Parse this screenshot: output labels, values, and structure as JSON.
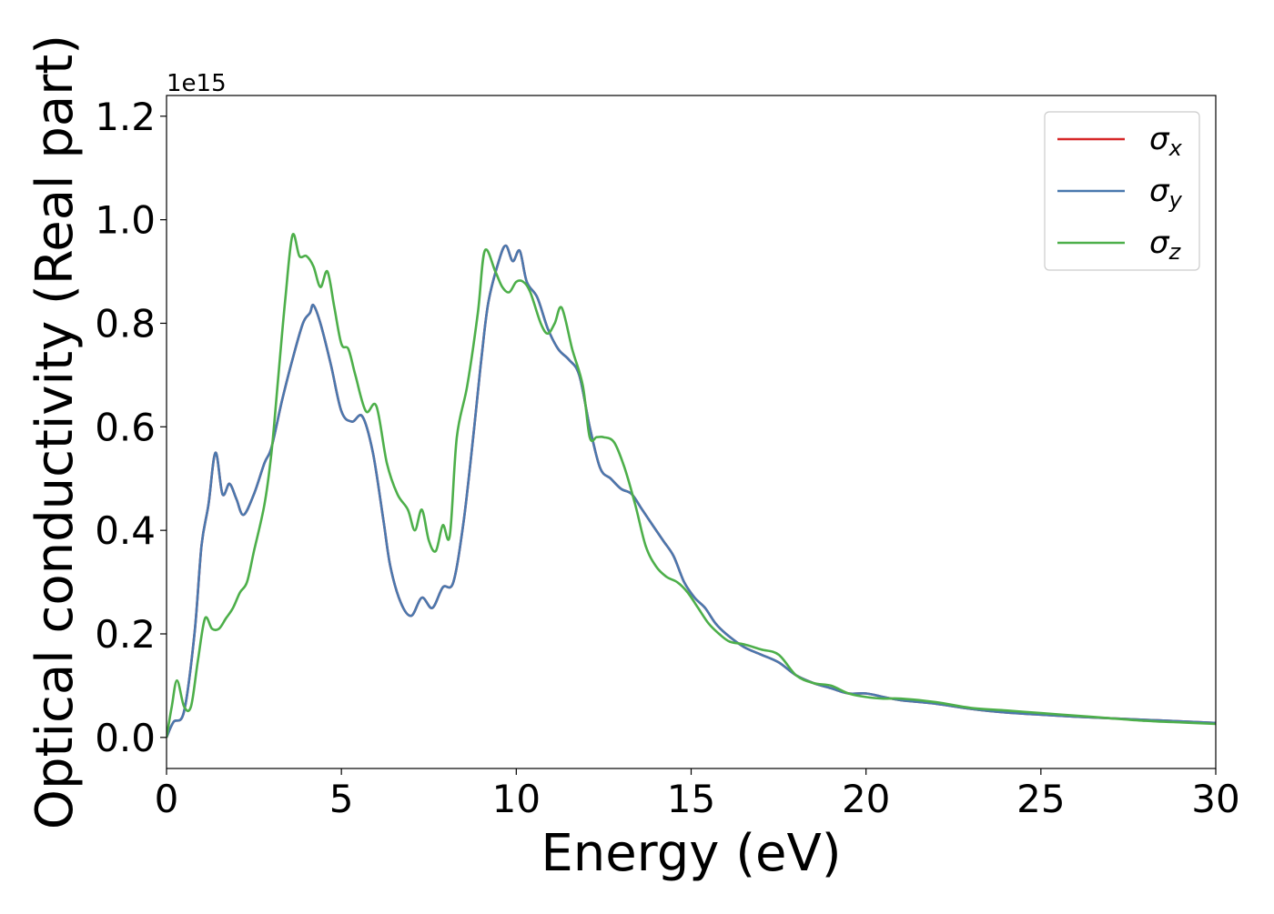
{
  "chart_data": {
    "type": "line",
    "title": "",
    "xlabel": "Energy (eV)",
    "ylabel": "Optical conductivity (Real part)",
    "y_offset_label": "1e15",
    "xlim": [
      0,
      30
    ],
    "ylim": [
      -0.06,
      1.24
    ],
    "xticks": [
      0,
      5,
      10,
      15,
      20,
      25,
      30
    ],
    "yticks": [
      0.0,
      0.2,
      0.4,
      0.6,
      0.8,
      1.0,
      1.2
    ],
    "xtick_labels": [
      "0",
      "5",
      "10",
      "15",
      "20",
      "25",
      "30"
    ],
    "ytick_labels": [
      "0.0",
      "0.2",
      "0.4",
      "0.6",
      "0.8",
      "1.0",
      "1.2"
    ],
    "grid": false,
    "legend": "top-right",
    "series": [
      {
        "name": "σx",
        "legend_base": "σ",
        "legend_sub": "x",
        "color": "#d62728",
        "points": [
          [
            0,
            0
          ],
          [
            0.2,
            0.03
          ],
          [
            0.5,
            0.05
          ],
          [
            0.8,
            0.2
          ],
          [
            1.0,
            0.37
          ],
          [
            1.2,
            0.45
          ],
          [
            1.4,
            0.55
          ],
          [
            1.6,
            0.47
          ],
          [
            1.8,
            0.49
          ],
          [
            2.0,
            0.46
          ],
          [
            2.2,
            0.43
          ],
          [
            2.5,
            0.47
          ],
          [
            2.8,
            0.53
          ],
          [
            3.0,
            0.56
          ],
          [
            3.3,
            0.65
          ],
          [
            3.6,
            0.73
          ],
          [
            3.9,
            0.8
          ],
          [
            4.1,
            0.82
          ],
          [
            4.2,
            0.835
          ],
          [
            4.4,
            0.8
          ],
          [
            4.7,
            0.72
          ],
          [
            5.0,
            0.63
          ],
          [
            5.3,
            0.61
          ],
          [
            5.6,
            0.62
          ],
          [
            5.9,
            0.55
          ],
          [
            6.2,
            0.42
          ],
          [
            6.4,
            0.33
          ],
          [
            6.7,
            0.26
          ],
          [
            7.0,
            0.235
          ],
          [
            7.3,
            0.27
          ],
          [
            7.6,
            0.25
          ],
          [
            7.9,
            0.29
          ],
          [
            8.2,
            0.3
          ],
          [
            8.5,
            0.42
          ],
          [
            8.8,
            0.6
          ],
          [
            9.0,
            0.73
          ],
          [
            9.2,
            0.84
          ],
          [
            9.5,
            0.92
          ],
          [
            9.7,
            0.95
          ],
          [
            9.9,
            0.92
          ],
          [
            10.1,
            0.94
          ],
          [
            10.3,
            0.88
          ],
          [
            10.6,
            0.85
          ],
          [
            10.9,
            0.79
          ],
          [
            11.2,
            0.75
          ],
          [
            11.5,
            0.73
          ],
          [
            11.8,
            0.7
          ],
          [
            12.1,
            0.6
          ],
          [
            12.4,
            0.52
          ],
          [
            12.7,
            0.5
          ],
          [
            13.0,
            0.48
          ],
          [
            13.3,
            0.47
          ],
          [
            13.6,
            0.44
          ],
          [
            13.9,
            0.41
          ],
          [
            14.2,
            0.38
          ],
          [
            14.5,
            0.35
          ],
          [
            14.8,
            0.3
          ],
          [
            15.1,
            0.27
          ],
          [
            15.4,
            0.25
          ],
          [
            15.7,
            0.22
          ],
          [
            16.0,
            0.2
          ],
          [
            16.5,
            0.175
          ],
          [
            17.0,
            0.16
          ],
          [
            17.5,
            0.145
          ],
          [
            18.0,
            0.12
          ],
          [
            18.5,
            0.105
          ],
          [
            19.0,
            0.095
          ],
          [
            19.5,
            0.085
          ],
          [
            20.0,
            0.085
          ],
          [
            20.5,
            0.078
          ],
          [
            21.0,
            0.072
          ],
          [
            22.0,
            0.065
          ],
          [
            23.0,
            0.055
          ],
          [
            24.0,
            0.048
          ],
          [
            25.0,
            0.044
          ],
          [
            26.0,
            0.04
          ],
          [
            27.0,
            0.037
          ],
          [
            28.0,
            0.034
          ],
          [
            29.0,
            0.031
          ],
          [
            30.0,
            0.028
          ]
        ]
      },
      {
        "name": "σy",
        "legend_base": "σ",
        "legend_sub": "y",
        "color": "#4a78ae",
        "points": [
          [
            0,
            0
          ],
          [
            0.2,
            0.03
          ],
          [
            0.5,
            0.05
          ],
          [
            0.8,
            0.2
          ],
          [
            1.0,
            0.37
          ],
          [
            1.2,
            0.45
          ],
          [
            1.4,
            0.55
          ],
          [
            1.6,
            0.47
          ],
          [
            1.8,
            0.49
          ],
          [
            2.0,
            0.46
          ],
          [
            2.2,
            0.43
          ],
          [
            2.5,
            0.47
          ],
          [
            2.8,
            0.53
          ],
          [
            3.0,
            0.56
          ],
          [
            3.3,
            0.65
          ],
          [
            3.6,
            0.73
          ],
          [
            3.9,
            0.8
          ],
          [
            4.1,
            0.82
          ],
          [
            4.2,
            0.835
          ],
          [
            4.4,
            0.8
          ],
          [
            4.7,
            0.72
          ],
          [
            5.0,
            0.63
          ],
          [
            5.3,
            0.61
          ],
          [
            5.6,
            0.62
          ],
          [
            5.9,
            0.55
          ],
          [
            6.2,
            0.42
          ],
          [
            6.4,
            0.33
          ],
          [
            6.7,
            0.26
          ],
          [
            7.0,
            0.235
          ],
          [
            7.3,
            0.27
          ],
          [
            7.6,
            0.25
          ],
          [
            7.9,
            0.29
          ],
          [
            8.2,
            0.3
          ],
          [
            8.5,
            0.42
          ],
          [
            8.8,
            0.6
          ],
          [
            9.0,
            0.73
          ],
          [
            9.2,
            0.84
          ],
          [
            9.5,
            0.92
          ],
          [
            9.7,
            0.95
          ],
          [
            9.9,
            0.92
          ],
          [
            10.1,
            0.94
          ],
          [
            10.3,
            0.88
          ],
          [
            10.6,
            0.85
          ],
          [
            10.9,
            0.79
          ],
          [
            11.2,
            0.75
          ],
          [
            11.5,
            0.73
          ],
          [
            11.8,
            0.7
          ],
          [
            12.1,
            0.6
          ],
          [
            12.4,
            0.52
          ],
          [
            12.7,
            0.5
          ],
          [
            13.0,
            0.48
          ],
          [
            13.3,
            0.47
          ],
          [
            13.6,
            0.44
          ],
          [
            13.9,
            0.41
          ],
          [
            14.2,
            0.38
          ],
          [
            14.5,
            0.35
          ],
          [
            14.8,
            0.3
          ],
          [
            15.1,
            0.27
          ],
          [
            15.4,
            0.25
          ],
          [
            15.7,
            0.22
          ],
          [
            16.0,
            0.2
          ],
          [
            16.5,
            0.175
          ],
          [
            17.0,
            0.16
          ],
          [
            17.5,
            0.145
          ],
          [
            18.0,
            0.12
          ],
          [
            18.5,
            0.105
          ],
          [
            19.0,
            0.095
          ],
          [
            19.5,
            0.085
          ],
          [
            20.0,
            0.085
          ],
          [
            20.5,
            0.078
          ],
          [
            21.0,
            0.072
          ],
          [
            22.0,
            0.065
          ],
          [
            23.0,
            0.055
          ],
          [
            24.0,
            0.048
          ],
          [
            25.0,
            0.044
          ],
          [
            26.0,
            0.04
          ],
          [
            27.0,
            0.037
          ],
          [
            28.0,
            0.034
          ],
          [
            29.0,
            0.031
          ],
          [
            30.0,
            0.028
          ]
        ]
      },
      {
        "name": "σz",
        "legend_base": "σ",
        "legend_sub": "z",
        "color": "#4daf4a",
        "points": [
          [
            0,
            0
          ],
          [
            0.15,
            0.06
          ],
          [
            0.3,
            0.11
          ],
          [
            0.5,
            0.06
          ],
          [
            0.7,
            0.06
          ],
          [
            0.9,
            0.15
          ],
          [
            1.1,
            0.23
          ],
          [
            1.3,
            0.21
          ],
          [
            1.5,
            0.21
          ],
          [
            1.7,
            0.23
          ],
          [
            1.9,
            0.25
          ],
          [
            2.1,
            0.28
          ],
          [
            2.3,
            0.3
          ],
          [
            2.5,
            0.36
          ],
          [
            2.8,
            0.45
          ],
          [
            3.0,
            0.55
          ],
          [
            3.2,
            0.7
          ],
          [
            3.4,
            0.85
          ],
          [
            3.6,
            0.97
          ],
          [
            3.8,
            0.93
          ],
          [
            4.0,
            0.93
          ],
          [
            4.2,
            0.91
          ],
          [
            4.4,
            0.87
          ],
          [
            4.6,
            0.9
          ],
          [
            4.8,
            0.83
          ],
          [
            5.0,
            0.76
          ],
          [
            5.2,
            0.75
          ],
          [
            5.4,
            0.7
          ],
          [
            5.7,
            0.63
          ],
          [
            6.0,
            0.64
          ],
          [
            6.3,
            0.53
          ],
          [
            6.6,
            0.47
          ],
          [
            6.9,
            0.44
          ],
          [
            7.1,
            0.4
          ],
          [
            7.3,
            0.44
          ],
          [
            7.5,
            0.38
          ],
          [
            7.7,
            0.36
          ],
          [
            7.9,
            0.41
          ],
          [
            8.1,
            0.39
          ],
          [
            8.3,
            0.58
          ],
          [
            8.6,
            0.68
          ],
          [
            8.9,
            0.82
          ],
          [
            9.1,
            0.94
          ],
          [
            9.4,
            0.9
          ],
          [
            9.6,
            0.87
          ],
          [
            9.8,
            0.86
          ],
          [
            10.0,
            0.88
          ],
          [
            10.2,
            0.88
          ],
          [
            10.4,
            0.86
          ],
          [
            10.7,
            0.8
          ],
          [
            10.9,
            0.78
          ],
          [
            11.1,
            0.8
          ],
          [
            11.3,
            0.83
          ],
          [
            11.6,
            0.75
          ],
          [
            11.9,
            0.68
          ],
          [
            12.1,
            0.58
          ],
          [
            12.3,
            0.58
          ],
          [
            12.5,
            0.58
          ],
          [
            12.8,
            0.57
          ],
          [
            13.1,
            0.52
          ],
          [
            13.4,
            0.45
          ],
          [
            13.7,
            0.37
          ],
          [
            14.0,
            0.33
          ],
          [
            14.3,
            0.31
          ],
          [
            14.6,
            0.3
          ],
          [
            14.9,
            0.28
          ],
          [
            15.2,
            0.25
          ],
          [
            15.5,
            0.22
          ],
          [
            15.8,
            0.2
          ],
          [
            16.1,
            0.185
          ],
          [
            16.5,
            0.18
          ],
          [
            17.0,
            0.17
          ],
          [
            17.5,
            0.16
          ],
          [
            18.0,
            0.12
          ],
          [
            18.5,
            0.105
          ],
          [
            19.0,
            0.1
          ],
          [
            19.5,
            0.085
          ],
          [
            20.0,
            0.078
          ],
          [
            20.5,
            0.075
          ],
          [
            21.0,
            0.075
          ],
          [
            22.0,
            0.068
          ],
          [
            23.0,
            0.057
          ],
          [
            24.0,
            0.052
          ],
          [
            25.0,
            0.047
          ],
          [
            26.0,
            0.042
          ],
          [
            27.0,
            0.037
          ],
          [
            28.0,
            0.032
          ],
          [
            29.0,
            0.029
          ],
          [
            30.0,
            0.026
          ]
        ]
      }
    ]
  }
}
